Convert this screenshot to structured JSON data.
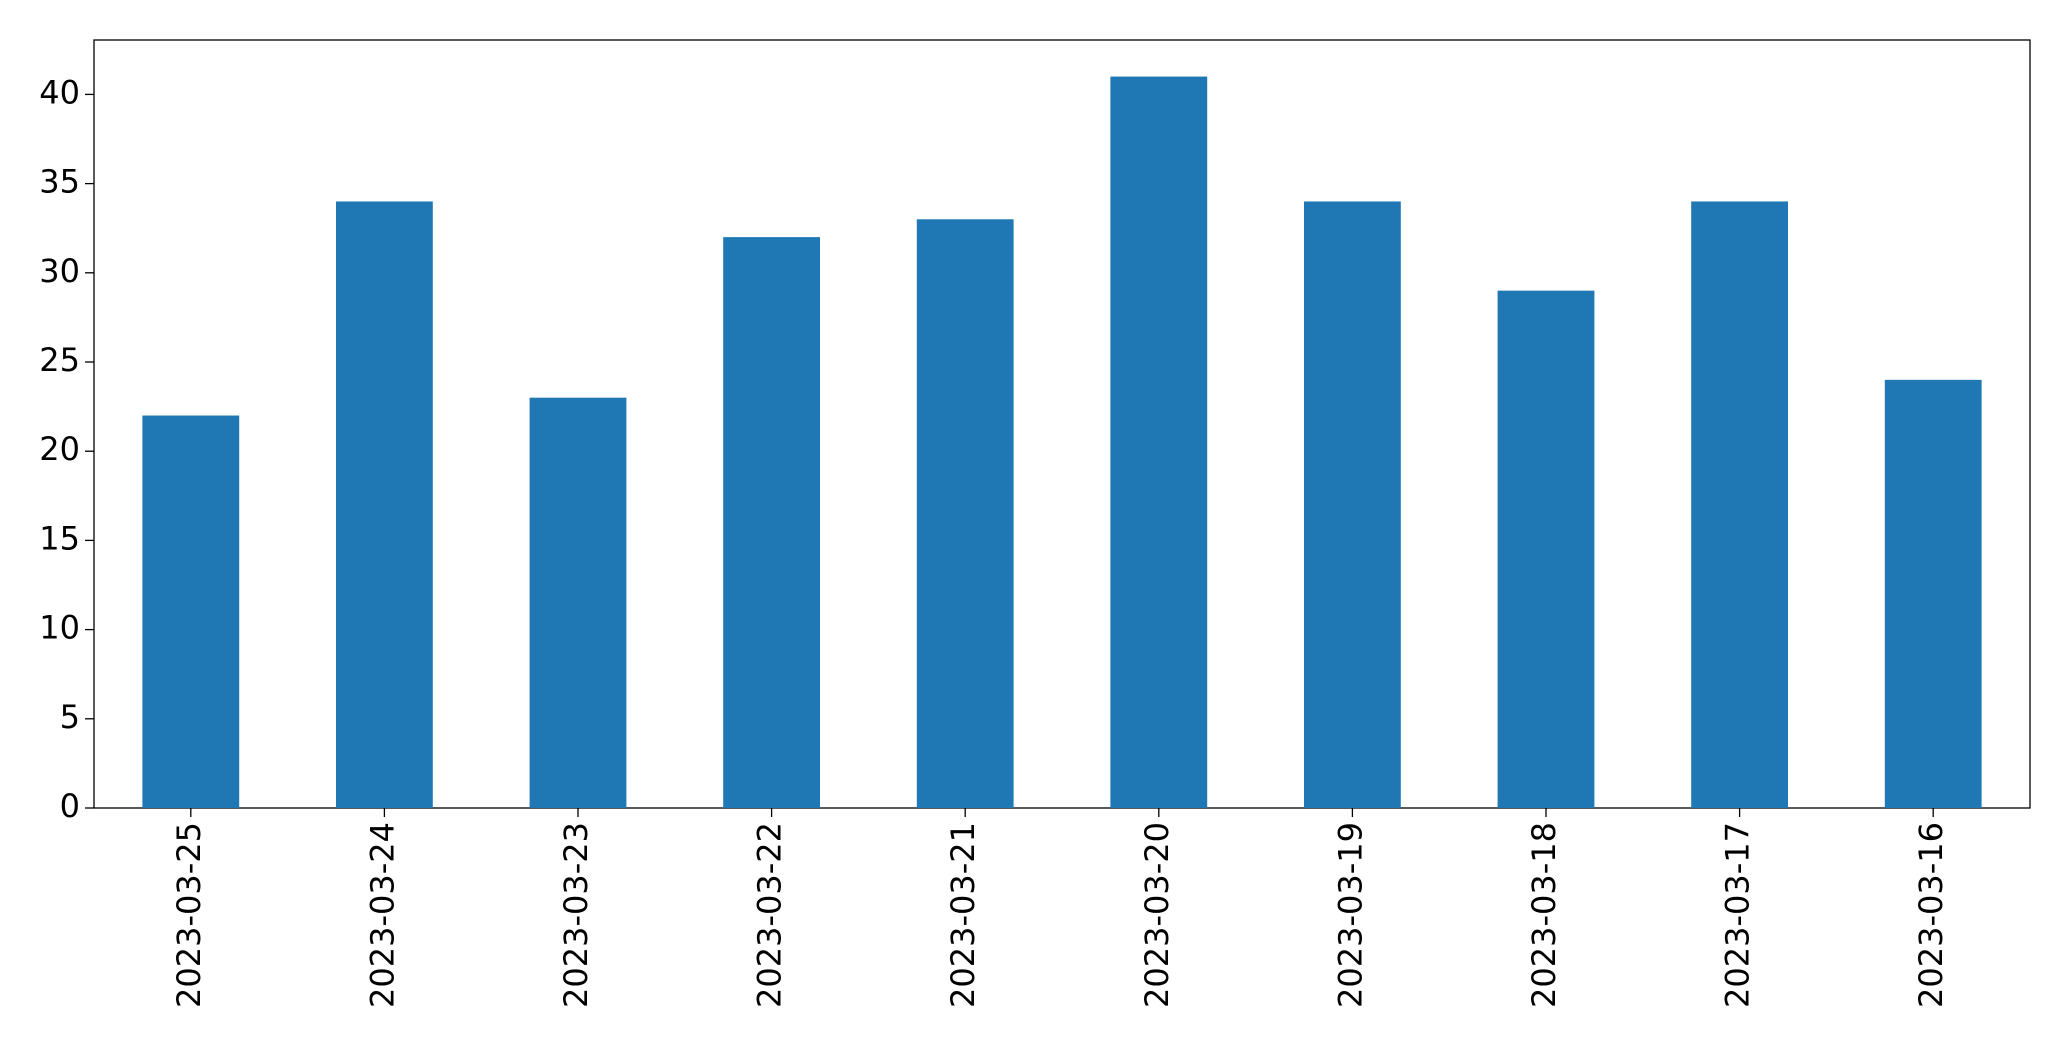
{
  "chart_data": {
    "type": "bar",
    "categories": [
      "2023-03-25",
      "2023-03-24",
      "2023-03-23",
      "2023-03-22",
      "2023-03-21",
      "2023-03-20",
      "2023-03-19",
      "2023-03-18",
      "2023-03-17",
      "2023-03-16"
    ],
    "values": [
      22,
      34,
      23,
      32,
      33,
      41,
      34,
      29,
      34,
      24
    ],
    "color": "#1f77b4",
    "ylim": [
      0,
      43.05
    ],
    "yticks": [
      0,
      5,
      10,
      15,
      20,
      25,
      30,
      35,
      40
    ],
    "grid": false
  }
}
